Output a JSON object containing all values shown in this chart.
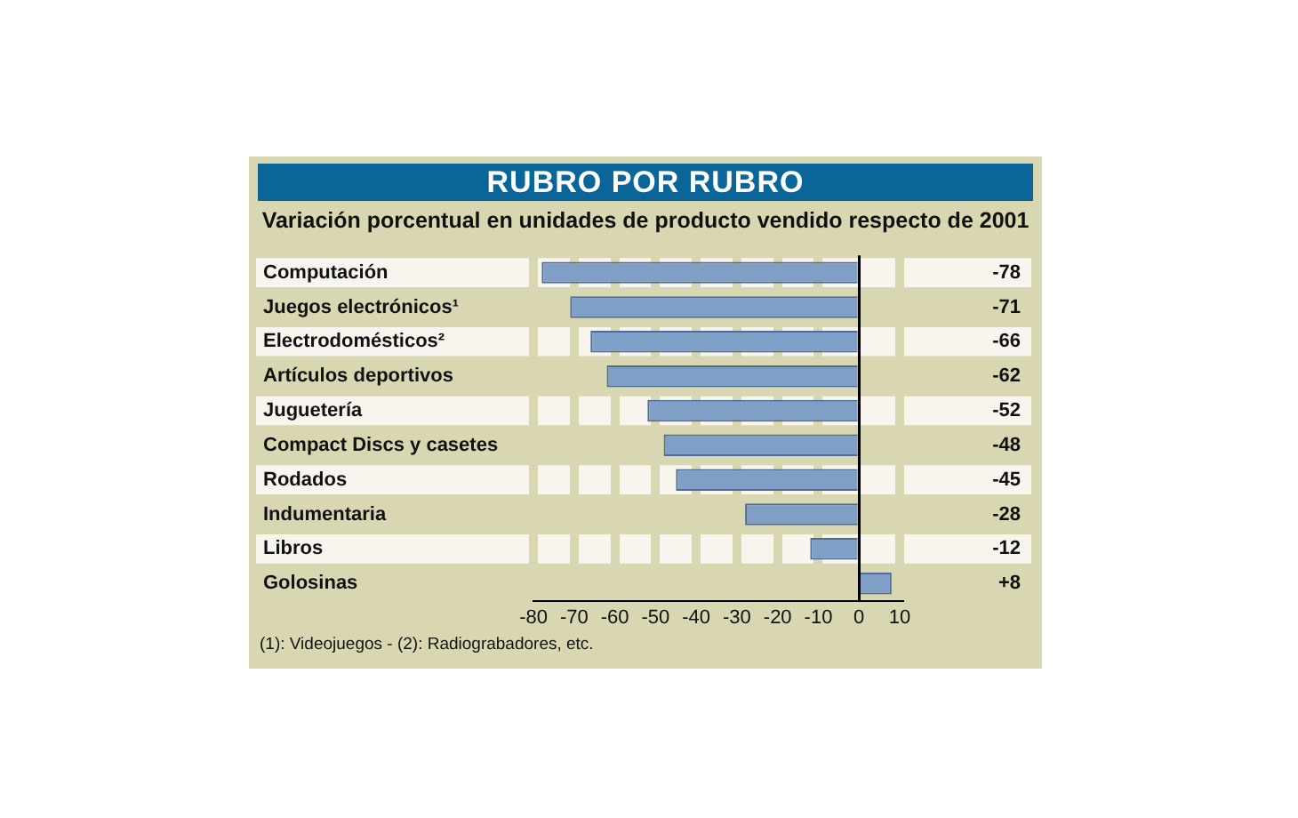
{
  "chart_data": {
    "type": "bar",
    "orientation": "horizontal",
    "title": "RUBRO POR RUBRO",
    "subtitle": "Variación porcentual en unidades de producto vendido respecto de 2001",
    "categories": [
      "Computación",
      "Juegos electrónicos¹",
      "Electrodomésticos²",
      "Artículos deportivos",
      "Juguetería",
      "Compact Discs y casetes",
      "Rodados",
      "Indumentaria",
      "Libros",
      "Golosinas"
    ],
    "values": [
      -78,
      -71,
      -66,
      -62,
      -52,
      -48,
      -45,
      -28,
      -12,
      8
    ],
    "value_labels": [
      "-78",
      "-71",
      "-66",
      "-62",
      "-52",
      "-48",
      "-45",
      "-28",
      "-12",
      "+8"
    ],
    "color": "#7f9fc6",
    "xlim": [
      -80,
      10
    ],
    "xticks": [
      -80,
      -70,
      -60,
      -50,
      -40,
      -30,
      -20,
      -10,
      0,
      10
    ],
    "grid": "x",
    "legend": false,
    "annotations": [
      "(1): Videojuegos - (2): Radiograbadores, etc."
    ]
  }
}
